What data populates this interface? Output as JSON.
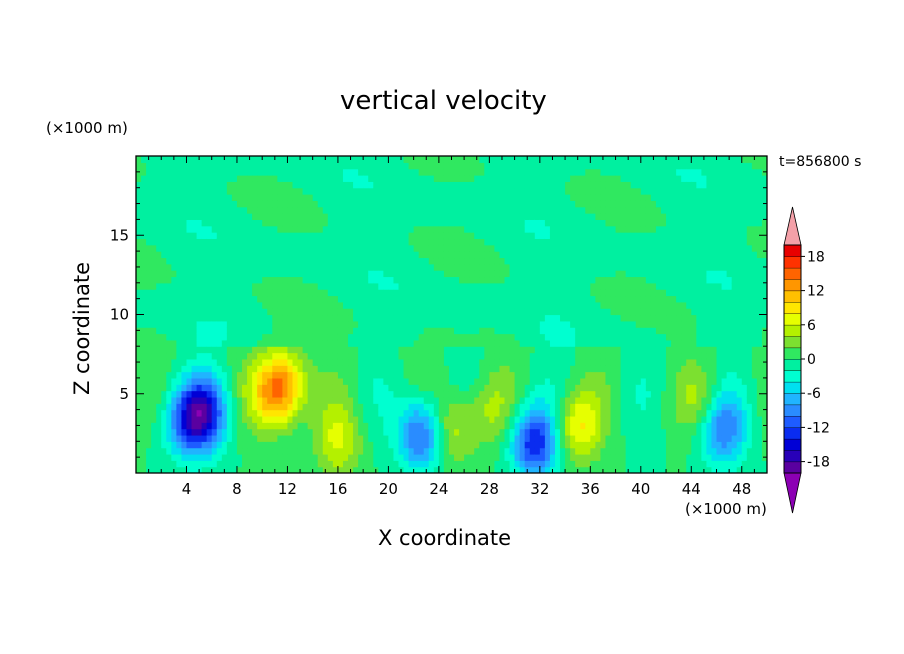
{
  "chart_data": {
    "type": "heatmap",
    "title": "vertical velocity",
    "xlabel": "X coordinate",
    "ylabel": "Z coordinate",
    "x_unit": "(×1000 m)",
    "y_unit": "(×1000 m)",
    "time_label": "t=856800 s",
    "xlim": [
      0,
      50
    ],
    "ylim": [
      0,
      20
    ],
    "x_ticks": [
      4,
      8,
      12,
      16,
      20,
      24,
      28,
      32,
      36,
      40,
      44,
      48
    ],
    "y_ticks": [
      5,
      10,
      15
    ],
    "colorbar": {
      "min": -20,
      "max": 20,
      "step": 2,
      "tick_labels": [
        "18",
        "12",
        "6",
        "0",
        "-6",
        "-12",
        "-18"
      ],
      "tick_values": [
        18,
        12,
        6,
        0,
        -6,
        -12,
        -18
      ],
      "extend": "both",
      "colors": [
        "#8c00b4",
        "#5a00a0",
        "#2800b8",
        "#0000d6",
        "#0a2cf0",
        "#1e5cff",
        "#2a8cff",
        "#20b4ff",
        "#00e0f0",
        "#00ffd0",
        "#00f0a0",
        "#30e860",
        "#7ce030",
        "#b4f000",
        "#e6ff00",
        "#ffe600",
        "#ffc000",
        "#ff9600",
        "#ff6400",
        "#ff3200",
        "#e80000",
        "#f4a0a8"
      ]
    },
    "features": [
      {
        "x": 5.5,
        "z": 3.8,
        "value": -12
      },
      {
        "x": 4.0,
        "z": 3.3,
        "value": -10
      },
      {
        "x": 10.8,
        "z": 5.0,
        "value": 8
      },
      {
        "x": 11.8,
        "z": 5.6,
        "value": 10
      },
      {
        "x": 16.0,
        "z": 2.0,
        "value": 6
      },
      {
        "x": 22.6,
        "z": 2.5,
        "value": -12
      },
      {
        "x": 25.0,
        "z": 2.8,
        "value": 6
      },
      {
        "x": 28.0,
        "z": 4.0,
        "value": 4
      },
      {
        "x": 31.6,
        "z": 2.0,
        "value": -14
      },
      {
        "x": 35.0,
        "z": 3.0,
        "value": 8
      },
      {
        "x": 46.5,
        "z": 2.8,
        "value": -10
      },
      {
        "x": 45.0,
        "z": 4.5,
        "value": 4
      }
    ]
  }
}
